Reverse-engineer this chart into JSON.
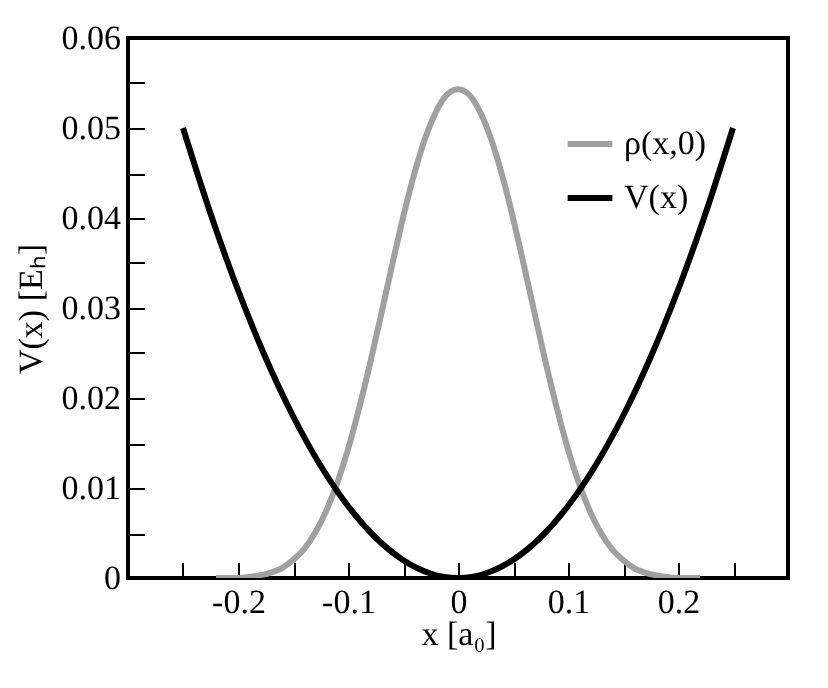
{
  "chart_data": {
    "type": "line",
    "xlabel": "x [a₀]",
    "ylabel": "V(x) [Eₕ]",
    "xlim": [
      -0.3,
      0.3
    ],
    "ylim": [
      0,
      0.06
    ],
    "xticks": [
      {
        "value": -0.25,
        "label": null
      },
      -0.2,
      {
        "value": -0.15,
        "label": null
      },
      -0.1,
      {
        "value": -0.05,
        "label": null
      },
      0,
      {
        "value": 0.05,
        "label": null
      },
      0.1,
      {
        "value": 0.15,
        "label": null
      },
      0.2,
      {
        "value": 0.25,
        "label": null
      }
    ],
    "yticks": [
      0,
      {
        "value": 0.005,
        "label": null
      },
      0.01,
      {
        "value": 0.015,
        "label": null
      },
      0.02,
      {
        "value": 0.025,
        "label": null
      },
      0.03,
      {
        "value": 0.035,
        "label": null
      },
      0.04,
      {
        "value": 0.045,
        "label": null
      },
      0.05,
      {
        "value": 0.055,
        "label": null
      },
      0.06
    ],
    "grid": false,
    "legend": "top right",
    "marker": "none",
    "line_style": "solid",
    "series": [
      {
        "name": "ρ(x,0)",
        "color": "#a0a0a0",
        "x": [
          -0.22,
          -0.2,
          -0.19,
          -0.18,
          -0.17,
          -0.16,
          -0.15,
          -0.14,
          -0.13,
          -0.12,
          -0.11,
          -0.1,
          -0.09,
          -0.08,
          -0.07,
          -0.06,
          -0.05,
          -0.04,
          -0.03,
          -0.02,
          -0.01,
          0,
          0.01,
          0.02,
          0.03,
          0.04,
          0.05,
          0.06,
          0.07,
          0.08,
          0.09,
          0.1,
          0.11,
          0.12,
          0.13,
          0.14,
          0.15,
          0.16,
          0.17,
          0.18,
          0.19,
          0.2,
          0.22
        ],
        "values": [
          0,
          0,
          0.0001,
          0.0003,
          0.0006,
          0.0011,
          0.002,
          0.0032,
          0.005,
          0.0074,
          0.0105,
          0.0143,
          0.0188,
          0.0238,
          0.0292,
          0.0347,
          0.04,
          0.0448,
          0.0488,
          0.0518,
          0.0537,
          0.0543,
          0.0537,
          0.0518,
          0.0488,
          0.0448,
          0.04,
          0.0347,
          0.0292,
          0.0238,
          0.0188,
          0.0143,
          0.0105,
          0.0074,
          0.005,
          0.0032,
          0.002,
          0.0011,
          0.0006,
          0.0003,
          0.0001,
          0,
          0
        ]
      },
      {
        "name": "V(x)",
        "color": "#000000",
        "x": [
          -0.25,
          -0.225,
          -0.2,
          -0.175,
          -0.15,
          -0.125,
          -0.1,
          -0.075,
          -0.05,
          -0.025,
          0,
          0.025,
          0.05,
          0.075,
          0.1,
          0.125,
          0.15,
          0.175,
          0.2,
          0.225,
          0.25
        ],
        "values": [
          0.05,
          0.0405,
          0.032,
          0.0245,
          0.018,
          0.0125,
          0.008,
          0.0045,
          0.002,
          0.0005,
          0,
          0.0005,
          0.002,
          0.0045,
          0.008,
          0.0125,
          0.018,
          0.0245,
          0.032,
          0.0405,
          0.05
        ]
      }
    ]
  }
}
